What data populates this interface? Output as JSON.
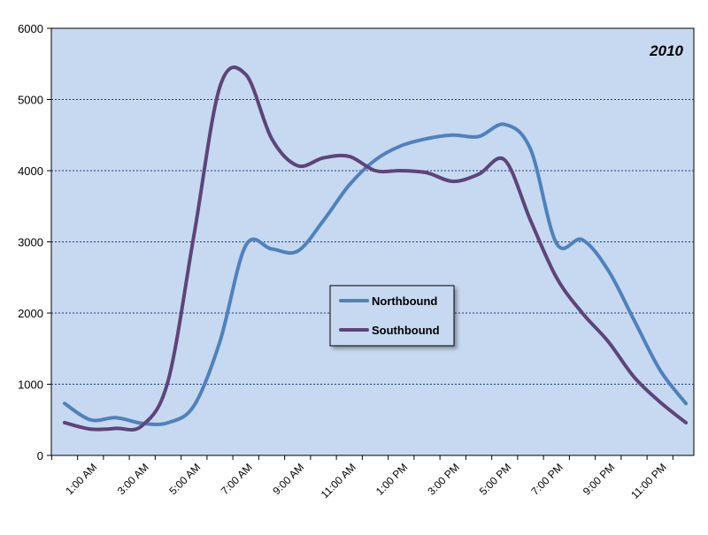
{
  "chart_data": {
    "type": "line",
    "title": "2010",
    "xlabel": "",
    "ylabel": "",
    "ylim": [
      0,
      6000
    ],
    "y_ticks": [
      "0",
      "1000",
      "2000",
      "3000",
      "4000",
      "5000",
      "6000"
    ],
    "x_ticks": [
      "1:00 AM",
      "3:00 AM",
      "5:00 AM",
      "7:00 AM",
      "9:00 AM",
      "11:00 AM",
      "1:00 PM",
      "3:00 PM",
      "5:00 PM",
      "7:00 PM",
      "9:00 PM",
      "11:00 PM"
    ],
    "x": [
      "12:00 AM",
      "1:00 AM",
      "2:00 AM",
      "3:00 AM",
      "4:00 AM",
      "5:00 AM",
      "6:00 AM",
      "7:00 AM",
      "8:00 AM",
      "9:00 AM",
      "10:00 AM",
      "11:00 AM",
      "12:00 PM",
      "1:00 PM",
      "2:00 PM",
      "3:00 PM",
      "4:00 PM",
      "5:00 PM",
      "6:00 PM",
      "7:00 PM",
      "8:00 PM",
      "9:00 PM",
      "10:00 PM",
      "11:00 PM",
      "12:00 AM"
    ],
    "series": [
      {
        "name": "Northbound",
        "color": "#4f81bd",
        "values": [
          730,
          500,
          530,
          450,
          460,
          700,
          1600,
          2950,
          2900,
          2870,
          3300,
          3800,
          4150,
          4350,
          4450,
          4500,
          4480,
          4650,
          4300,
          2980,
          3030,
          2600,
          1900,
          1200,
          730
        ]
      },
      {
        "name": "Southbound",
        "color": "#5e4478",
        "values": [
          460,
          370,
          380,
          420,
          1050,
          3100,
          5180,
          5350,
          4450,
          4070,
          4180,
          4200,
          4000,
          4000,
          3970,
          3850,
          3950,
          4150,
          3300,
          2500,
          2000,
          1600,
          1100,
          750,
          460
        ]
      }
    ],
    "grid": true,
    "legend_position": "center"
  }
}
